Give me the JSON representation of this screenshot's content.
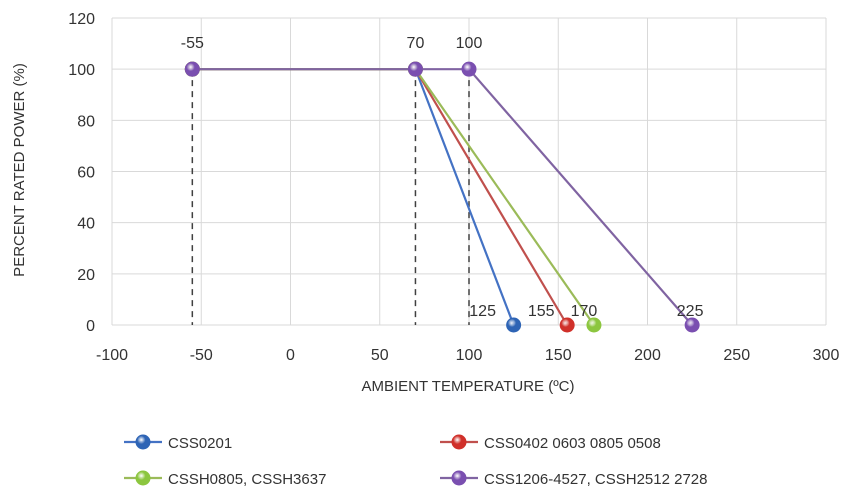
{
  "chart_data": {
    "type": "line",
    "xlabel": "AMBIENT TEMPERATURE (ºC)",
    "ylabel": "PERCENT RATED POWER (%)",
    "xlim": [
      -100,
      300
    ],
    "ylim": [
      0,
      120
    ],
    "x_ticks": [
      -100,
      -50,
      0,
      50,
      100,
      150,
      200,
      250,
      300
    ],
    "y_ticks": [
      0,
      20,
      40,
      60,
      80,
      100,
      120
    ],
    "x_tick_labels": [
      "-100",
      "-50",
      "0",
      "50",
      "100",
      "150",
      "200",
      "250",
      "300"
    ],
    "y_tick_labels": [
      "0",
      "20",
      "40",
      "60",
      "80",
      "100",
      "120"
    ],
    "grid": true,
    "legend_position": "bottom",
    "series": [
      {
        "name": "CSS0201",
        "color": "#4472C4",
        "marker_color": "#2E64B5",
        "points": [
          [
            -55,
            100
          ],
          [
            70,
            100
          ],
          [
            125,
            0
          ]
        ]
      },
      {
        "name": "CSS0402 0603 0805 0508",
        "color": "#C0504D",
        "marker_color": "#D0302A",
        "points": [
          [
            -55,
            100
          ],
          [
            70,
            100
          ],
          [
            155,
            0
          ]
        ]
      },
      {
        "name": "CSSH0805, CSSH3637",
        "color": "#9BBB59",
        "marker_color": "#8CC63F",
        "points": [
          [
            -55,
            100
          ],
          [
            70,
            100
          ],
          [
            170,
            0
          ]
        ]
      },
      {
        "name": "CSS1206-4527, CSSH2512 2728",
        "color": "#8064A2",
        "marker_color": "#7A4FB0",
        "points": [
          [
            -55,
            100
          ],
          [
            70,
            100
          ],
          [
            100,
            100
          ],
          [
            225,
            0
          ]
        ]
      }
    ],
    "reference_lines": [
      {
        "x": -55,
        "label": "-55"
      },
      {
        "x": 70,
        "label": "70"
      },
      {
        "x": 100,
        "label": "100"
      }
    ],
    "end_labels": [
      {
        "x": 125,
        "label": "125"
      },
      {
        "x": 155,
        "label": "155"
      },
      {
        "x": 170,
        "label": "170"
      },
      {
        "x": 225,
        "label": "225"
      }
    ]
  }
}
